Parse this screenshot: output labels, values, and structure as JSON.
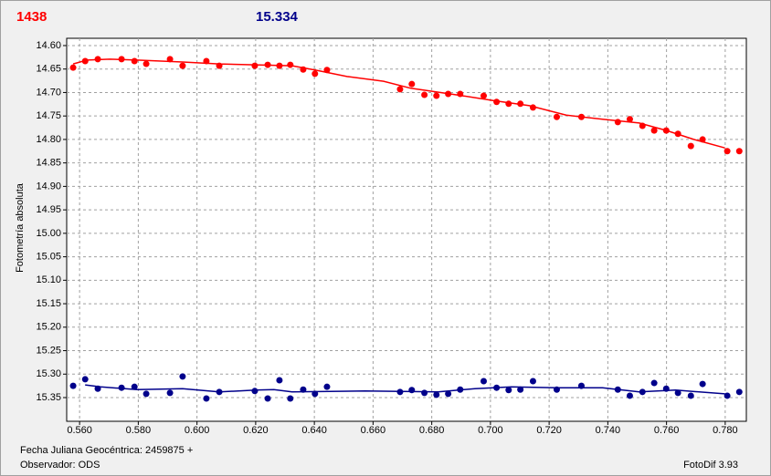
{
  "chart_data": {
    "type": "scatter",
    "title": "1438",
    "title_color": "#ff0000",
    "subtitle": "15.334",
    "subtitle_color": "#00008b",
    "ylabel": "Fotometría absoluta",
    "xlabel": "Fecha Juliana Geocéntrica: 2459875 +",
    "annotations": [
      "Observador: ODS",
      "FotoDif 3.93"
    ],
    "grid": true,
    "xlim": [
      0.5556,
      0.7872
    ],
    "ylim": [
      15.4005,
      14.5845
    ],
    "xticks": [
      {
        "value": 0.56,
        "label": "0.560"
      },
      {
        "value": 0.58,
        "label": "0.580"
      },
      {
        "value": 0.6,
        "label": "0.600"
      },
      {
        "value": 0.62,
        "label": "0.620"
      },
      {
        "value": 0.64,
        "label": "0.640"
      },
      {
        "value": 0.66,
        "label": "0.660"
      },
      {
        "value": 0.68,
        "label": "0.680"
      },
      {
        "value": 0.7,
        "label": "0.700"
      },
      {
        "value": 0.72,
        "label": "0.720"
      },
      {
        "value": 0.74,
        "label": "0.740"
      },
      {
        "value": 0.76,
        "label": "0.760"
      },
      {
        "value": 0.78,
        "label": "0.780"
      }
    ],
    "yticks": [
      {
        "value": 14.6,
        "label": "14.60"
      },
      14.65,
      {
        "value": 14.7,
        "label": "14.70"
      },
      14.75,
      {
        "value": 14.8,
        "label": "14.80"
      },
      14.85,
      {
        "value": 14.9,
        "label": "14.90"
      },
      14.95,
      {
        "value": 15.0,
        "label": "15.00"
      },
      15.05,
      {
        "value": 15.1,
        "label": "15.10"
      },
      15.15,
      {
        "value": 15.2,
        "label": "15.20"
      },
      15.25,
      {
        "value": 15.3,
        "label": "15.30"
      },
      15.35
    ],
    "series": [
      {
        "mode": "markers",
        "color": "#ff0000",
        "x": [
          0.5578,
          0.5619,
          0.5662,
          0.5743,
          0.5787,
          0.5827,
          0.5908,
          0.5951,
          0.6032,
          0.6076,
          0.6197,
          0.6241,
          0.6281,
          0.6318,
          0.6362,
          0.6402,
          0.6443,
          0.6692,
          0.6732,
          0.6775,
          0.6816,
          0.6856,
          0.6897,
          0.6977,
          0.7021,
          0.7062,
          0.7102,
          0.7145,
          0.7226,
          0.731,
          0.7434,
          0.7475,
          0.7518,
          0.7558,
          0.7599,
          0.7639,
          0.7683,
          0.7723,
          0.7807,
          0.7848
        ],
        "values": [
          14.647,
          14.633,
          14.629,
          14.629,
          14.633,
          14.639,
          14.629,
          14.643,
          14.633,
          14.643,
          14.643,
          14.641,
          14.643,
          14.641,
          14.651,
          14.66,
          14.652,
          14.693,
          14.682,
          14.705,
          14.707,
          14.703,
          14.703,
          14.707,
          14.72,
          14.724,
          14.724,
          14.732,
          14.752,
          14.752,
          14.763,
          14.757,
          14.771,
          14.781,
          14.781,
          14.788,
          14.814,
          14.8,
          14.825,
          14.825
        ]
      },
      {
        "mode": "line",
        "color": "#ff0000",
        "x": [
          0.5578,
          0.5625,
          0.5703,
          0.5796,
          0.5951,
          0.6076,
          0.62,
          0.6324,
          0.6402,
          0.6511,
          0.6636,
          0.6729,
          0.6884,
          0.7009,
          0.7133,
          0.7258,
          0.7382,
          0.7507,
          0.76,
          0.7693,
          0.7799
        ],
        "values": [
          14.639,
          14.631,
          14.629,
          14.631,
          14.635,
          14.639,
          14.641,
          14.643,
          14.652,
          14.666,
          14.676,
          14.691,
          14.705,
          14.717,
          14.728,
          14.748,
          14.757,
          14.765,
          14.781,
          14.8,
          14.818
        ]
      },
      {
        "mode": "markers",
        "color": "#00008b",
        "x": [
          0.5578,
          0.5619,
          0.5662,
          0.5743,
          0.5787,
          0.5827,
          0.5908,
          0.5951,
          0.6032,
          0.6076,
          0.6197,
          0.6241,
          0.6281,
          0.6318,
          0.6362,
          0.6402,
          0.6443,
          0.6692,
          0.6732,
          0.6775,
          0.6816,
          0.6856,
          0.6897,
          0.6977,
          0.7021,
          0.7062,
          0.7102,
          0.7145,
          0.7226,
          0.731,
          0.7434,
          0.7475,
          0.7518,
          0.7558,
          0.7599,
          0.7639,
          0.7683,
          0.7723,
          0.7807,
          0.7848
        ],
        "values": [
          15.325,
          15.311,
          15.331,
          15.329,
          15.327,
          15.342,
          15.34,
          15.305,
          15.352,
          15.338,
          15.336,
          15.352,
          15.313,
          15.352,
          15.333,
          15.342,
          15.327,
          15.338,
          15.334,
          15.34,
          15.344,
          15.342,
          15.333,
          15.315,
          15.329,
          15.334,
          15.333,
          15.315,
          15.333,
          15.325,
          15.333,
          15.346,
          15.338,
          15.319,
          15.331,
          15.34,
          15.346,
          15.321,
          15.346,
          15.338
        ]
      },
      {
        "mode": "line",
        "color": "#00008b",
        "x": [
          0.5619,
          0.5672,
          0.5796,
          0.5951,
          0.6076,
          0.62,
          0.6262,
          0.6324,
          0.6573,
          0.6822,
          0.6947,
          0.7071,
          0.7226,
          0.7382,
          0.7507,
          0.7631,
          0.7799
        ],
        "values": [
          15.323,
          15.327,
          15.333,
          15.331,
          15.338,
          15.334,
          15.333,
          15.338,
          15.336,
          15.338,
          15.331,
          15.327,
          15.329,
          15.329,
          15.338,
          15.334,
          15.342
        ]
      }
    ]
  }
}
